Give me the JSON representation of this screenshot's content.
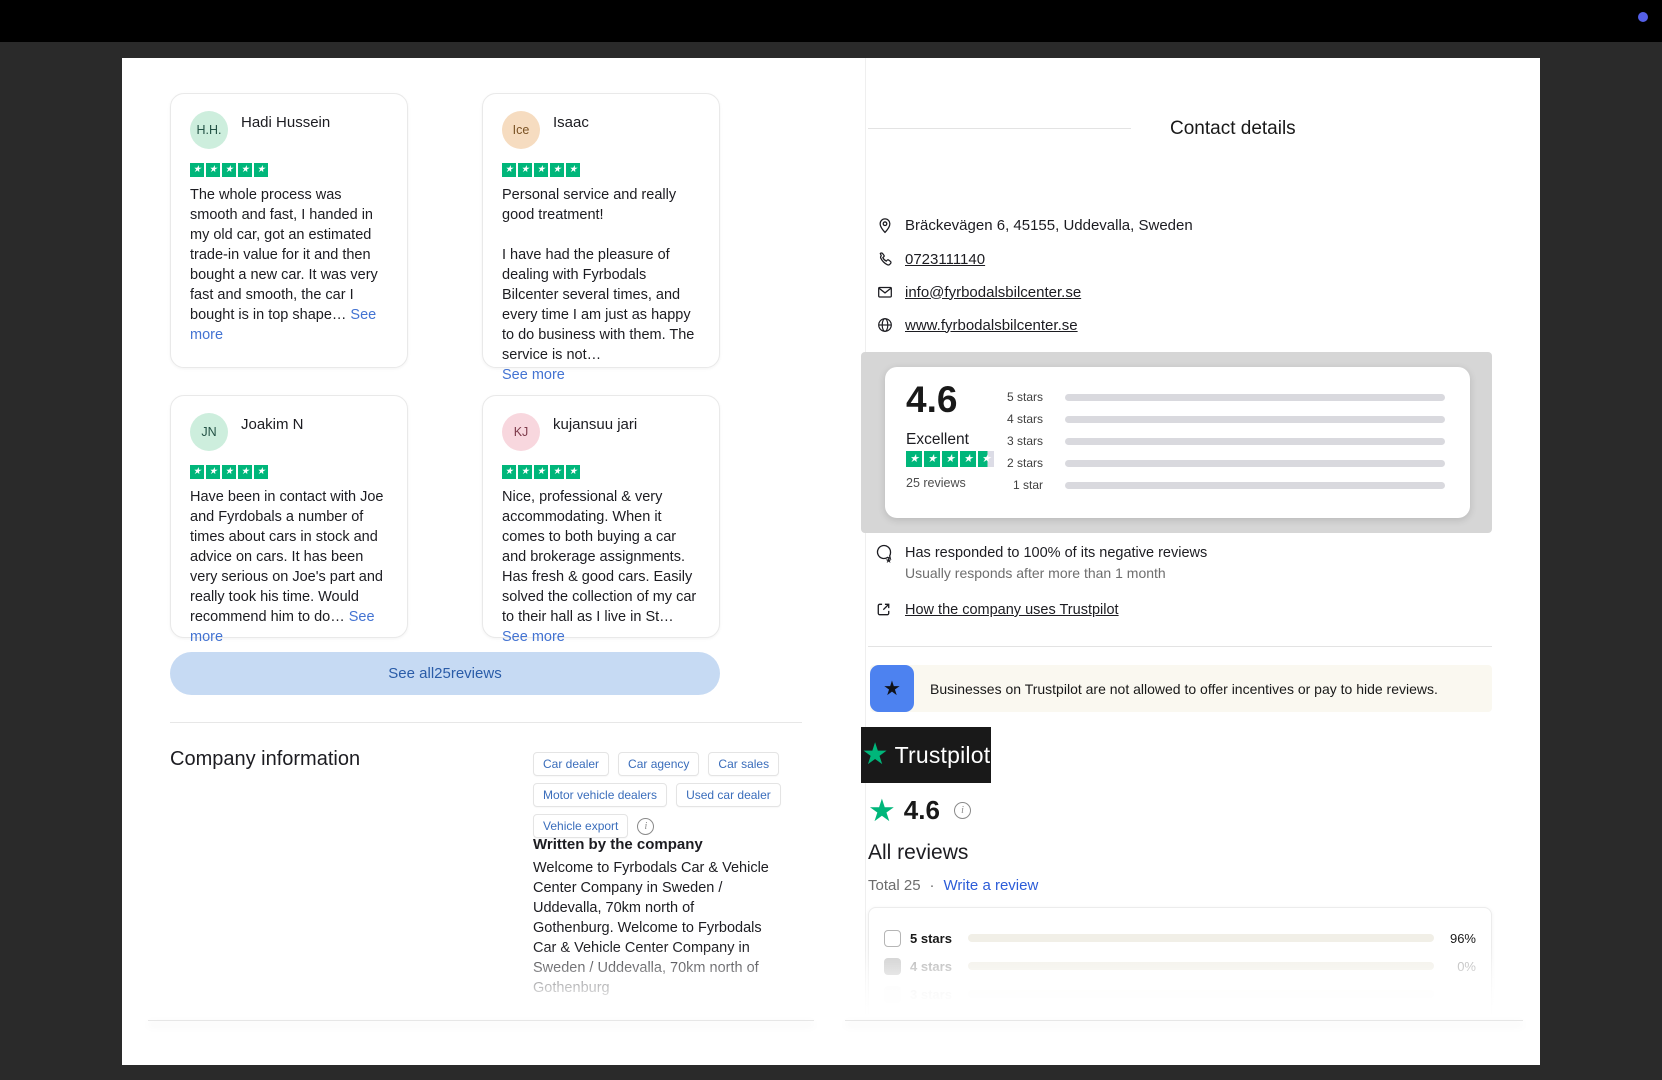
{
  "topbar": {
    "dot_color": "#5560e8"
  },
  "colors": {
    "trust_green": "#00b67a",
    "trust_red": "#ff3722",
    "link_blue": "#4373d2",
    "button_bg": "#c6daf3",
    "button_fg": "#2a5ca8",
    "banner_bg": "#faf8f0",
    "banner_icon_bg": "#4d82f0"
  },
  "reviews": {
    "cards": [
      {
        "initials": "H.H.",
        "avatar_bg": "#cdeedd",
        "avatar_fg": "#235245",
        "name": "Hadi Hussein",
        "stars": 5,
        "p1": "The whole process was smooth and fast, I handed in my old car, got an estimated trade-in value for it and then bought a new car. It was very fast and smooth, the car I bought is in top shape…",
        "p2": "",
        "see_more": "See more"
      },
      {
        "initials": "Ice",
        "avatar_bg": "#f6dcc0",
        "avatar_fg": "#7a5224",
        "name": "Isaac",
        "stars": 5,
        "p1": "Personal service and really good treatment!",
        "p2": "I have had the pleasure of dealing with Fyrbodals Bilcenter several times, and every time I am just as happy to do business with them. The service is not…",
        "see_more": "See more"
      },
      {
        "initials": "JN",
        "avatar_bg": "#cdeedd",
        "avatar_fg": "#235245",
        "name": "Joakim N",
        "stars": 5,
        "p1": "Have been in contact with Joe and Fyrdobals a number of times about cars in stock and advice on cars. It has been very serious on Joe's part and really took his time. Would recommend him to do…",
        "p2": "",
        "see_more": "See more"
      },
      {
        "initials": "KJ",
        "avatar_bg": "#f8d7de",
        "avatar_fg": "#7d3a4a",
        "name": "kujansuu jari",
        "stars": 5,
        "p1": "Nice, professional & very accommodating. When it comes to both buying a car and brokerage assignments. Has fresh & good cars. Easily solved the collection of my car to their hall as I live in St…",
        "p2": "",
        "see_more": "See more"
      }
    ],
    "see_all_label": "See all25reviews"
  },
  "company_information": {
    "title": "Company information",
    "tags_rows": [
      [
        "Car dealer",
        "Car agency",
        "Car sales"
      ],
      [
        "Motor vehicle dealers",
        "Used car dealer"
      ],
      [
        "Vehicle export"
      ]
    ],
    "info_icon": "i",
    "written_by_title": "Written by the company",
    "description": "Welcome to Fyrbodals Car & Vehicle Center Company in Sweden / Uddevalla, 70km north of Gothenburg. Welcome to Fyrbodals Car & Vehicle Center Company in Sweden / Uddevalla, 70km north of Gothenburg"
  },
  "contact": {
    "title": "Contact details",
    "address": "Bräckevägen 6, 45155, Uddevalla, Sweden",
    "phone": "0723111140",
    "email": "info@fyrbodalsbilcenter.se",
    "website": "www.fyrbodalsbilcenter.se"
  },
  "summary": {
    "score": "4.6",
    "label": "Excellent",
    "reviews_count": "25 reviews",
    "stars_shown": 4.5,
    "distribution": [
      {
        "label": "5 stars",
        "width": "100%",
        "color": "green"
      },
      {
        "label": "4 stars",
        "width": "0%",
        "color": "none"
      },
      {
        "label": "3 stars",
        "width": "0%",
        "color": "none"
      },
      {
        "label": "2 stars",
        "width": "0%",
        "color": "none"
      },
      {
        "label": "1 star",
        "width": "9%",
        "color": "red"
      }
    ]
  },
  "response_info": {
    "line1": "Has responded to 100% of its negative reviews",
    "line2": "Usually responds after more than 1 month",
    "link": "How the company uses Trustpilot"
  },
  "banner": {
    "text": "Businesses on Trustpilot are not allowed to offer incentives or pay to hide reviews."
  },
  "brand": {
    "logo_text": "Trustpilot",
    "score": "4.6"
  },
  "all_reviews": {
    "title": "All reviews",
    "total": "Total 25",
    "separator": "·",
    "write_review": "Write a review",
    "filters": [
      {
        "label": "5 stars",
        "pct": "96%",
        "width": "96.5%"
      },
      {
        "label": "4 stars",
        "pct": "0%",
        "width": "0%"
      },
      {
        "label": "3 stars",
        "pct": "",
        "width": "0%"
      }
    ]
  }
}
